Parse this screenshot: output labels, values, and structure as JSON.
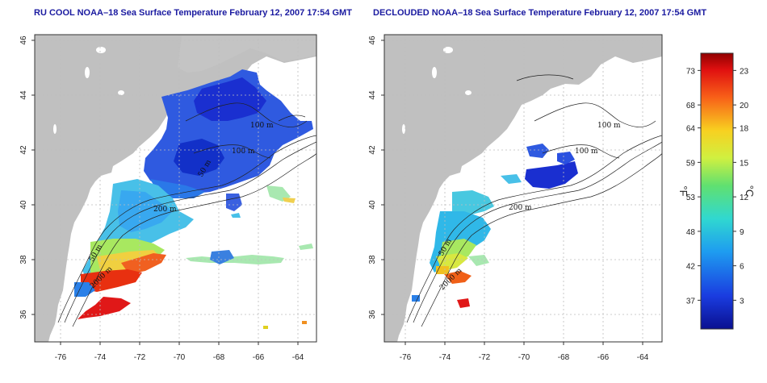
{
  "panels": [
    {
      "title": "RU COOL NOAA–18 Sea Surface Temperature February 12, 2007 17:54 GMT",
      "depth_labels": [
        "100 m",
        "100 m",
        "200 m",
        "50 m",
        "50 m",
        "2000 m"
      ]
    },
    {
      "title": "DECLOUDED NOAA–18 Sea Surface Temperature February 12, 2007 17:54 GMT",
      "depth_labels": [
        "100 m",
        "100 m",
        "200 m",
        "50 m",
        "2000 m"
      ]
    }
  ],
  "axes": {
    "x_ticks": [
      "-76",
      "-74",
      "-72",
      "-70",
      "-68",
      "-66",
      "-64"
    ],
    "y_ticks": [
      "36",
      "38",
      "40",
      "42",
      "44",
      "46"
    ]
  },
  "colorbar": {
    "fahrenheit_ticks": [
      "73",
      "68",
      "64",
      "59",
      "53",
      "48",
      "42",
      "37"
    ],
    "celsius_ticks": [
      "23",
      "20",
      "18",
      "15",
      "12",
      "9",
      "6",
      "3"
    ],
    "fahrenheit_unit": "°F",
    "celsius_unit": "°C",
    "celsius_range": [
      0.5,
      24.5
    ]
  },
  "colors": {
    "land": "#c0c0c0",
    "title": "#1a1aa0",
    "grid": "#bdbdbd"
  }
}
